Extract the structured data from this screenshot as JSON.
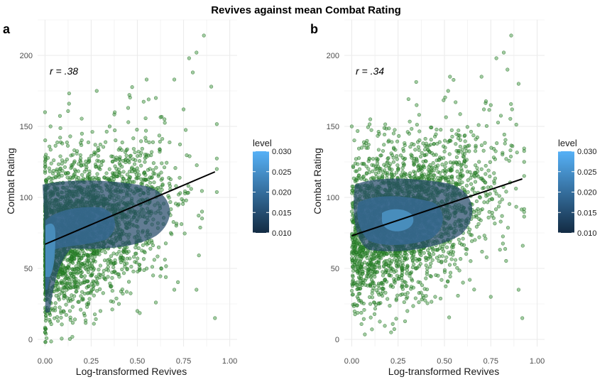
{
  "title": "Revives against mean Combat Rating",
  "colors": {
    "point_fill": "#2e8b2e",
    "point_stroke": "#1f6b1f",
    "grid": "#ebebeb",
    "regression_line": "#000000",
    "level_low": "#132b43",
    "level_high": "#56b1f7"
  },
  "chart_data": [
    {
      "type": "scatter",
      "panel": "a",
      "xlabel": "Log-transformed Revives",
      "ylabel": "Combat Rating",
      "xlim": [
        -0.04,
        1.04
      ],
      "ylim": [
        -5,
        225
      ],
      "xticks": [
        0.0,
        0.25,
        0.5,
        0.75,
        1.0
      ],
      "xtick_labels": [
        "0.00",
        "0.25",
        "0.50",
        "0.75",
        "1.00"
      ],
      "yticks": [
        0,
        50,
        100,
        150,
        200
      ],
      "ytick_labels": [
        "0",
        "50",
        "100",
        "150",
        "200"
      ],
      "grid": true,
      "annotation": "r = .38",
      "regression": {
        "x": [
          0.0,
          0.92
        ],
        "y": [
          67,
          118
        ]
      },
      "legend": {
        "title": "level",
        "position": "right",
        "ticks": [
          "0.030",
          "0.025",
          "0.020",
          "0.015",
          "0.010"
        ],
        "range": [
          0.01,
          0.03
        ]
      },
      "sample_points": [
        [
          0.86,
          214
        ],
        [
          0.82,
          202
        ],
        [
          0.78,
          198
        ],
        [
          0.8,
          188
        ],
        [
          0.7,
          183
        ],
        [
          0.55,
          183
        ],
        [
          0.9,
          178
        ],
        [
          0.6,
          170
        ],
        [
          0.45,
          163
        ],
        [
          0.75,
          162
        ],
        [
          0.13,
          166
        ],
        [
          0.35,
          150
        ],
        [
          0.28,
          175
        ],
        [
          0.93,
          120
        ],
        [
          0.85,
          90
        ],
        [
          0.82,
          35
        ],
        [
          0.92,
          15
        ],
        [
          0.6,
          26
        ],
        [
          0.7,
          35
        ],
        [
          0.5,
          20
        ],
        [
          0.4,
          25
        ],
        [
          0.3,
          20
        ],
        [
          0.2,
          28
        ],
        [
          0.1,
          20
        ],
        [
          0.0,
          5
        ],
        [
          0.0,
          160
        ],
        [
          0.03,
          150
        ],
        [
          0.15,
          130
        ],
        [
          0.25,
          110
        ],
        [
          0.45,
          110
        ]
      ]
    },
    {
      "type": "scatter",
      "panel": "b",
      "xlabel": "Log-transformed Revives",
      "ylabel": "Combat Rating",
      "xlim": [
        -0.04,
        1.04
      ],
      "ylim": [
        -5,
        225
      ],
      "xticks": [
        0.0,
        0.25,
        0.5,
        0.75,
        1.0
      ],
      "xtick_labels": [
        "0.00",
        "0.25",
        "0.50",
        "0.75",
        "1.00"
      ],
      "yticks": [
        0,
        50,
        100,
        150,
        200
      ],
      "ytick_labels": [
        "0",
        "50",
        "100",
        "150",
        "200"
      ],
      "grid": true,
      "annotation": "r = .34",
      "regression": {
        "x": [
          0.0,
          0.92
        ],
        "y": [
          73,
          113
        ]
      },
      "legend": {
        "title": "level",
        "position": "right",
        "ticks": [
          "0.030",
          "0.025",
          "0.020",
          "0.015",
          "0.010"
        ],
        "range": [
          0.01,
          0.03
        ]
      },
      "sample_points": [
        [
          0.86,
          214
        ],
        [
          0.82,
          202
        ],
        [
          0.78,
          198
        ],
        [
          0.84,
          190
        ],
        [
          0.7,
          185
        ],
        [
          0.53,
          185
        ],
        [
          0.9,
          180
        ],
        [
          0.52,
          175
        ],
        [
          0.35,
          165
        ],
        [
          0.75,
          165
        ],
        [
          0.1,
          155
        ],
        [
          0.0,
          150
        ],
        [
          0.2,
          140
        ],
        [
          0.93,
          125
        ],
        [
          0.9,
          35
        ],
        [
          0.92,
          15
        ],
        [
          0.75,
          30
        ],
        [
          0.6,
          40
        ],
        [
          0.45,
          30
        ],
        [
          0.3,
          20
        ],
        [
          0.1,
          25
        ],
        [
          0.0,
          60
        ],
        [
          0.0,
          90
        ],
        [
          0.4,
          110
        ],
        [
          0.65,
          95
        ]
      ]
    }
  ]
}
